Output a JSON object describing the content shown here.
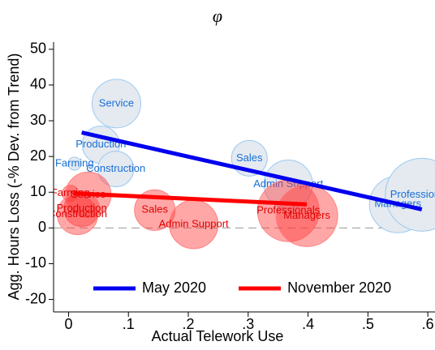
{
  "chart_data": {
    "type": "bubble",
    "title": "φ",
    "x_label": "Actual Telework Use",
    "y_label": "Agg. Hours Loss (-% Dev. from Trend)",
    "xlim": [
      -0.025,
      0.612
    ],
    "ylim": [
      -23.5,
      52
    ],
    "xticks": [
      0,
      {
        "value": 0.1,
        "label": ".1"
      },
      {
        "value": 0.2,
        "label": ".2"
      },
      {
        "value": 0.3,
        "label": ".3"
      },
      {
        "value": 0.4,
        "label": ".4"
      },
      {
        "value": 0.5,
        "label": ".5"
      },
      {
        "value": 0.6,
        "label": ".6"
      }
    ],
    "yticks": [
      -20,
      -10,
      0,
      10,
      20,
      30,
      40,
      50
    ],
    "reference_line": 0,
    "legend": "bottom",
    "series": [
      {
        "name": "May 2020",
        "color": "#0000ee",
        "label_color": "#1a6fd6",
        "bubble_fill": "#e4eaf0",
        "bubble_stroke": "#9ccaf2",
        "labels": [
          "Service",
          "Production",
          "Construction",
          "Farming",
          "Sales",
          "Admin Support",
          "Managers",
          "Professionals"
        ],
        "x": [
          0.08,
          0.054,
          0.079,
          0.01,
          0.302,
          0.367,
          0.55,
          0.59
        ],
        "values": [
          34.8,
          23.3,
          16.5,
          18,
          19.5,
          12.2,
          6.6,
          9.3
        ],
        "sizes": [
          30,
          23,
          22,
          8,
          22,
          30,
          35,
          45
        ],
        "fit_x": [
          0.022,
          0.59
        ],
        "fit_y": [
          26.7,
          5.2
        ]
      },
      {
        "name": "November 2020",
        "color": "#ff0000",
        "label_color": "#e00000",
        "bubble_fill": "rgba(255,60,60,0.45)",
        "bubble_stroke": "#ff8080",
        "labels": [
          "Farming",
          "Service",
          "Production",
          "Construction",
          "Sales",
          "Admin Support",
          "Professionals",
          "Managers"
        ],
        "x": [
          0.003,
          0.033,
          0.022,
          0.015,
          0.144,
          0.209,
          0.367,
          0.398
        ],
        "values": [
          9.7,
          9.3,
          5.4,
          3.8,
          5,
          1,
          4.8,
          3.4
        ],
        "sizes": [
          10,
          28,
          22,
          25,
          25,
          30,
          38,
          38
        ],
        "fit_x": [
          0.008,
          0.398
        ],
        "fit_y": [
          9.7,
          6.6
        ]
      }
    ]
  }
}
